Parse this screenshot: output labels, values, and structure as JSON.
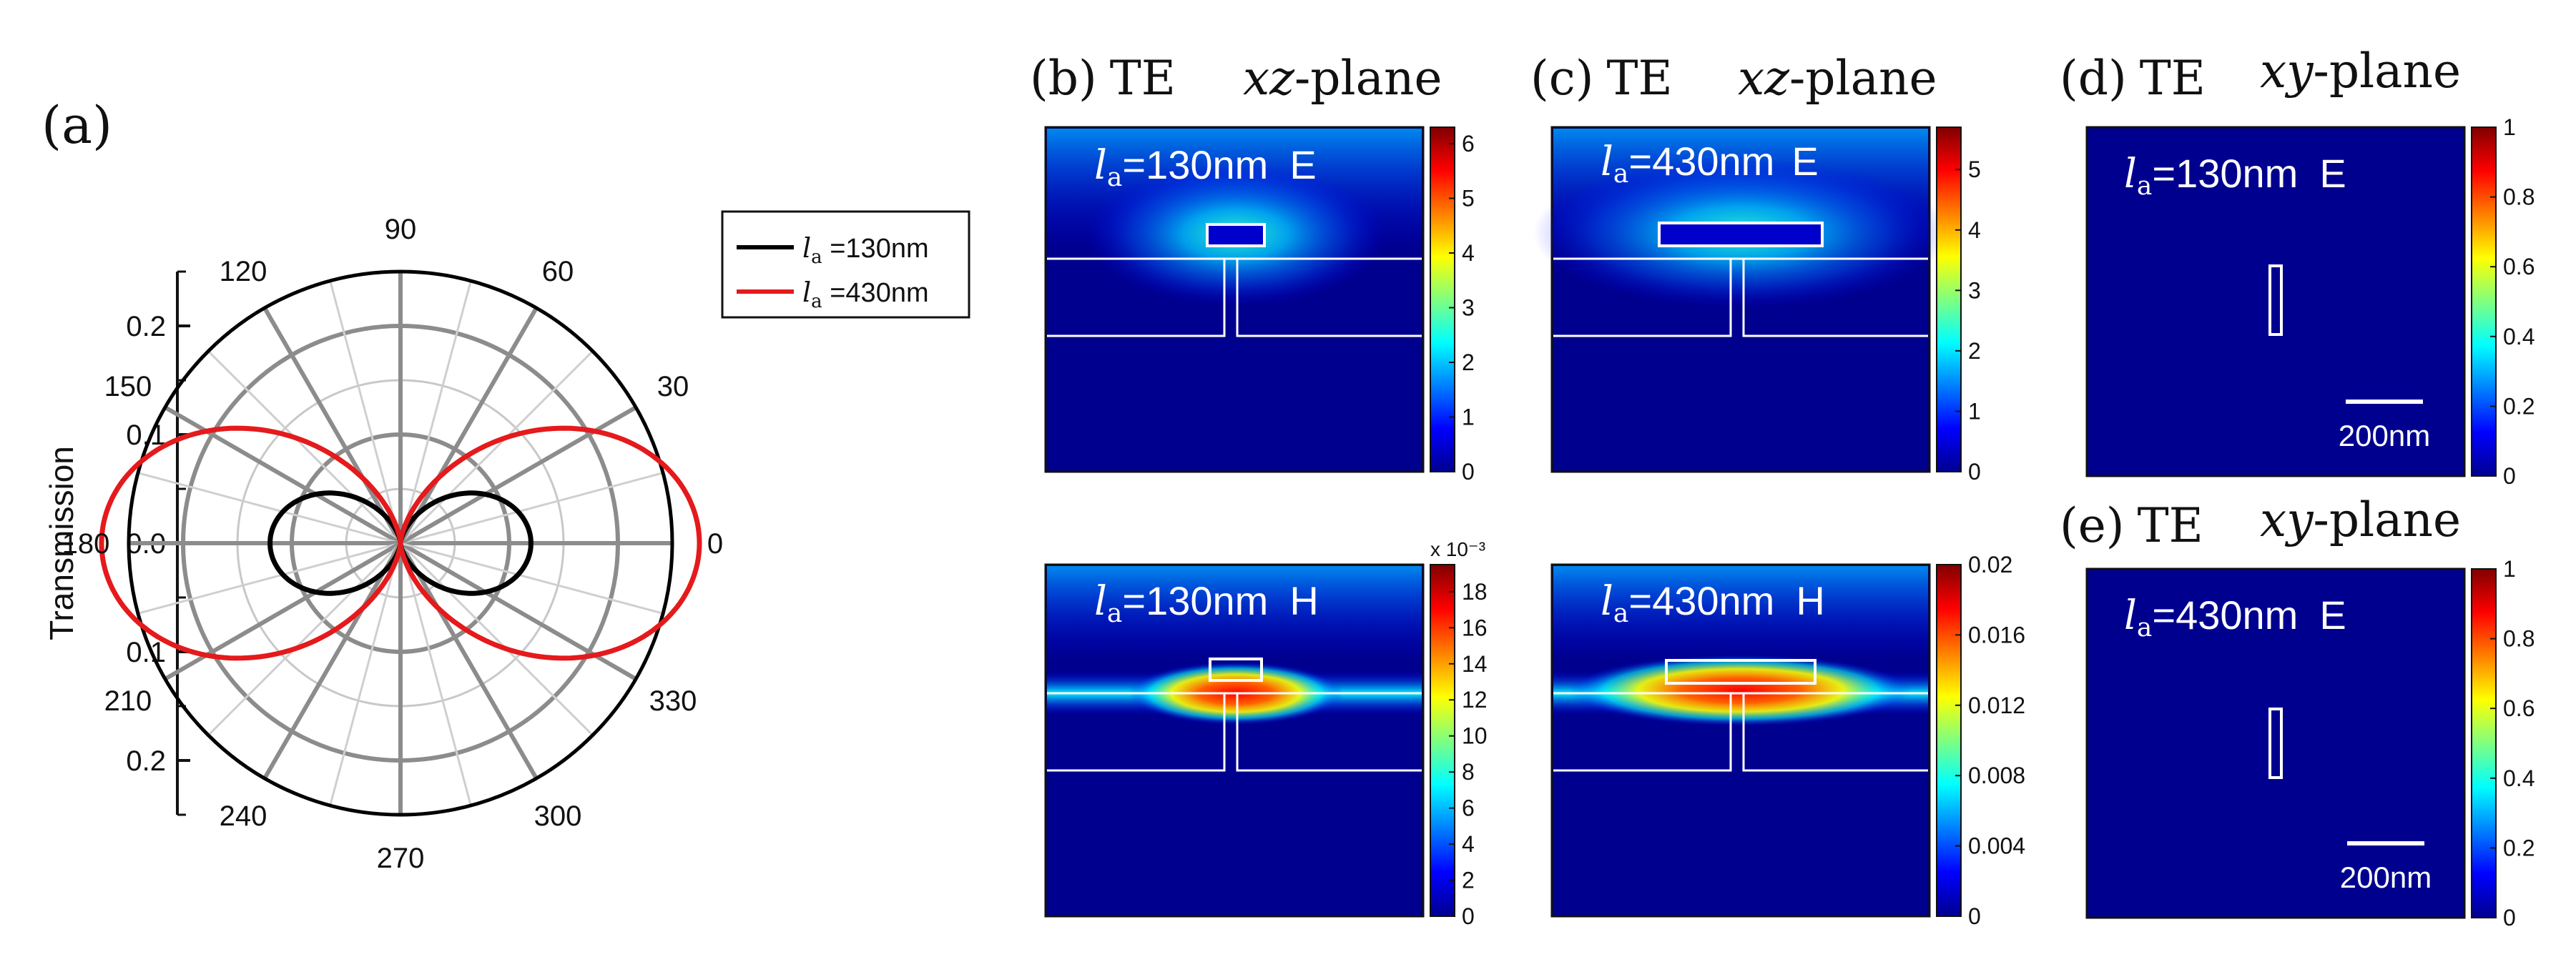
{
  "chart_data": [
    {
      "id": "a",
      "type": "polar-line",
      "panel_label": "(a)",
      "ylabel": "Transmission",
      "radial_ticks": [
        "0.2",
        "0.1",
        "0.0",
        "0.1",
        "0.2"
      ],
      "r_max": 0.25,
      "angle_ticks": [
        "0",
        "30",
        "60",
        "90",
        "120",
        "150",
        "180",
        "210",
        "240",
        "270",
        "300",
        "330"
      ],
      "legend_location": "top-right",
      "series": [
        {
          "name_sym": "l",
          "name_sub": "a",
          "name_rest": " =130nm",
          "color": "#000000",
          "amplitude": 0.12,
          "model": "r = A*cos^2(theta)"
        },
        {
          "name_sym": "l",
          "name_sub": "a",
          "name_rest": " =430nm",
          "color": "#e41a1c",
          "amplitude": 0.275,
          "model": "r = A*cos^2(theta)"
        }
      ]
    },
    {
      "id": "b-top",
      "type": "heatmap",
      "panel_label": "(b)",
      "mode": "TE",
      "plane_italic": "xz",
      "plane_rest": "-plane",
      "field_sym": "l",
      "field_sub": "a",
      "field_rest": "=130nm",
      "field_type": "E",
      "colorbar_ticks": [
        "0",
        "1",
        "2",
        "3",
        "4",
        "5",
        "6"
      ],
      "colorbar_range": [
        0,
        6.3
      ],
      "colorbar_exponent": ""
    },
    {
      "id": "b-bottom",
      "type": "heatmap",
      "field_sym": "l",
      "field_sub": "a",
      "field_rest": "=130nm",
      "field_type": "H",
      "colorbar_ticks": [
        "0",
        "2",
        "4",
        "6",
        "8",
        "10",
        "12",
        "14",
        "16",
        "18"
      ],
      "colorbar_range": [
        0,
        19.5
      ],
      "colorbar_exponent": "x 10⁻³"
    },
    {
      "id": "c-top",
      "type": "heatmap",
      "panel_label": "(c)",
      "mode": "TE",
      "plane_italic": "xz",
      "plane_rest": "-plane",
      "field_sym": "l",
      "field_sub": "a",
      "field_rest": "=430nm",
      "field_type": "E",
      "colorbar_ticks": [
        "0",
        "1",
        "2",
        "3",
        "4",
        "5"
      ],
      "colorbar_range": [
        0,
        5.7
      ],
      "colorbar_exponent": ""
    },
    {
      "id": "c-bottom",
      "type": "heatmap",
      "field_sym": "l",
      "field_sub": "a",
      "field_rest": "=430nm",
      "field_type": "H",
      "colorbar_ticks": [
        "0",
        "0.004",
        "0.008",
        "0.012",
        "0.016",
        "0.02"
      ],
      "colorbar_range": [
        0,
        0.02
      ],
      "colorbar_exponent": ""
    },
    {
      "id": "d",
      "type": "heatmap",
      "panel_label": "(d)",
      "mode": "TE",
      "plane_italic": "xy",
      "plane_rest": "-plane",
      "field_sym": "l",
      "field_sub": "a",
      "field_rest": "=130nm",
      "field_type": "E",
      "colorbar_ticks": [
        "0",
        "0.2",
        "0.4",
        "0.6",
        "0.8",
        "1"
      ],
      "colorbar_range": [
        0,
        1
      ],
      "scalebar": "200nm"
    },
    {
      "id": "e",
      "type": "heatmap",
      "panel_label": "(e)",
      "mode": "TE",
      "plane_italic": "xy",
      "plane_rest": "-plane",
      "field_sym": "l",
      "field_sub": "a",
      "field_rest": "=430nm",
      "field_type": "E",
      "colorbar_ticks": [
        "0",
        "0.2",
        "0.4",
        "0.6",
        "0.8",
        "1"
      ],
      "colorbar_range": [
        0,
        1
      ],
      "scalebar": "200nm"
    }
  ]
}
